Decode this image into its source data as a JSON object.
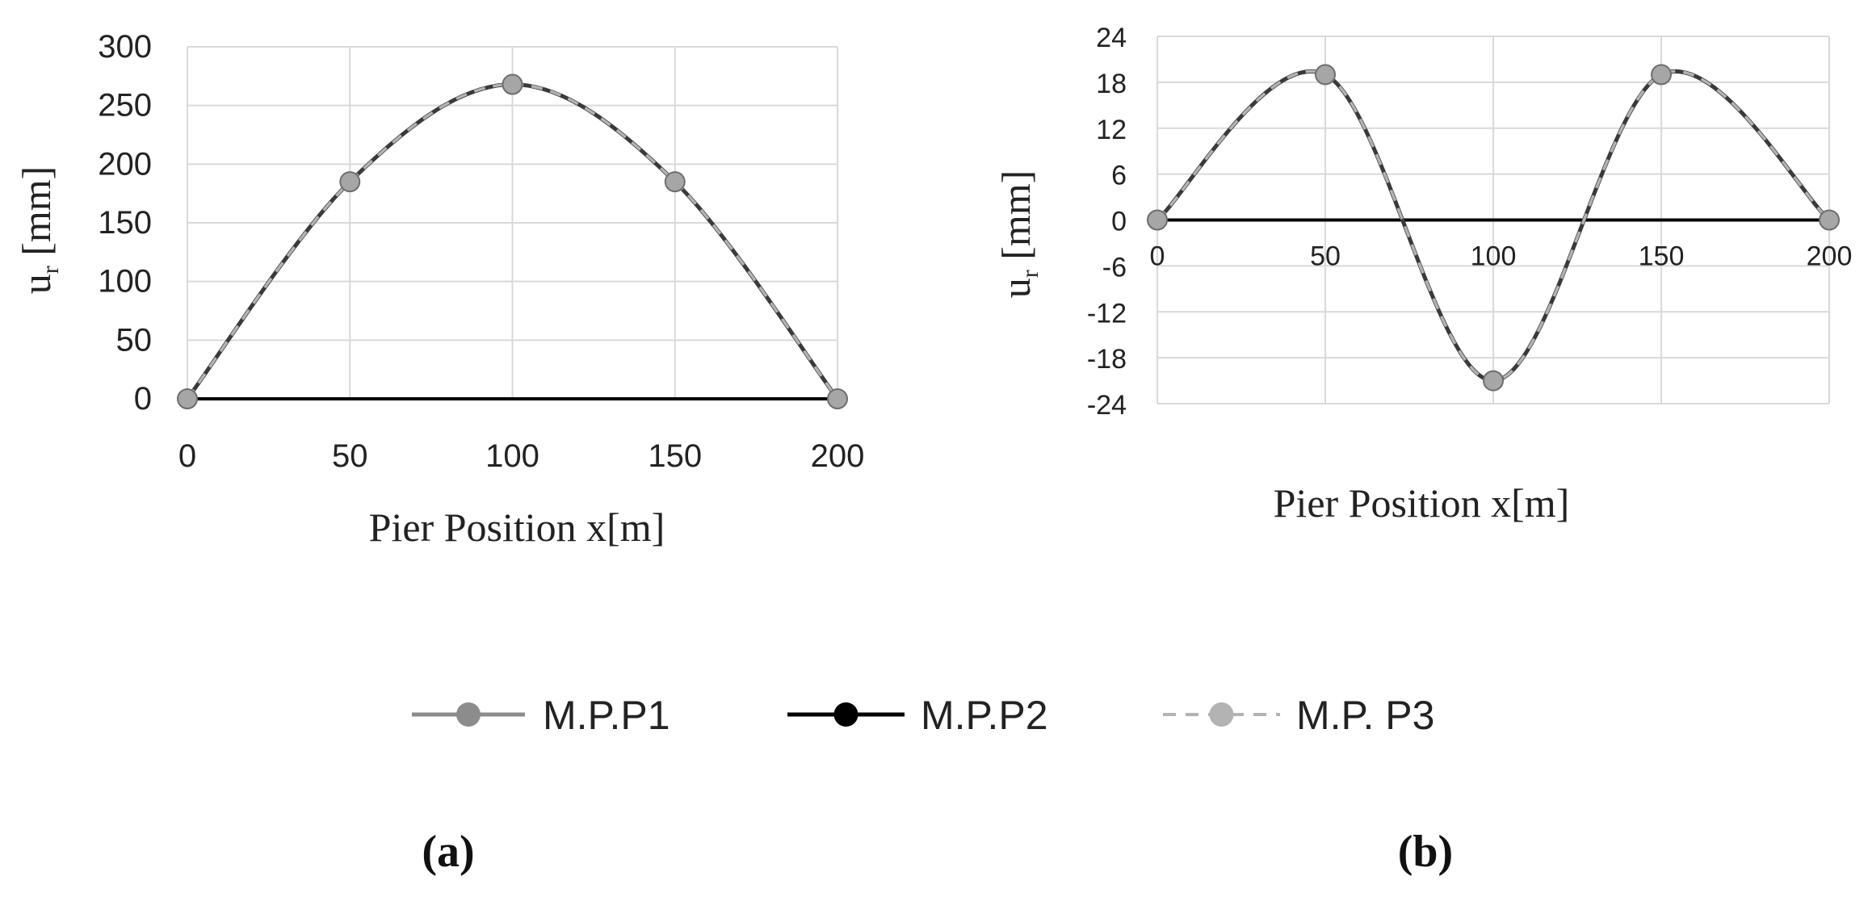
{
  "colors": {
    "grid": "#d9d9d9",
    "p1": "#8c8c8c",
    "p2": "#000000",
    "p3": "#b3b3b3",
    "marker": "#a6a6a6",
    "marker_stroke": "#6e6e6e"
  },
  "legend": [
    {
      "name": "M.P.P1",
      "style": "solid",
      "color": "#8c8c8c",
      "marker": "#8c8c8c"
    },
    {
      "name": "M.P.P2",
      "style": "solid",
      "color": "#000000",
      "marker": "#000000"
    },
    {
      "name": "M.P. P3",
      "style": "dashed",
      "color": "#b3b3b3",
      "marker": "#b3b3b3"
    }
  ],
  "chart_data": [
    {
      "panel": "(a)",
      "type": "line",
      "xlabel": "Pier Position x[m]",
      "ylabel_main": "u",
      "ylabel_sub": "r",
      "ylabel_unit": " [mm]",
      "xlim": [
        0,
        200
      ],
      "ylim": [
        0,
        300
      ],
      "xticks": [
        0,
        50,
        100,
        150,
        200
      ],
      "yticks": [
        0,
        50,
        100,
        150,
        200,
        250,
        300
      ],
      "x": [
        0,
        50,
        100,
        150,
        200
      ],
      "series": [
        {
          "name": "M.P.P1",
          "values": [
            0,
            185,
            268,
            185,
            0
          ]
        },
        {
          "name": "M.P.P2",
          "values": [
            0,
            0,
            0,
            0,
            0
          ]
        },
        {
          "name": "M.P. P3",
          "values": [
            0,
            185,
            268,
            185,
            0
          ]
        }
      ]
    },
    {
      "panel": "(b)",
      "type": "line",
      "xlabel": "Pier Position x[m]",
      "ylabel_main": "u",
      "ylabel_sub": "r",
      "ylabel_unit": " [mm]",
      "xlim": [
        0,
        200
      ],
      "ylim": [
        -24,
        24
      ],
      "xticks": [
        0,
        50,
        100,
        150,
        200
      ],
      "yticks": [
        24,
        18,
        12,
        6,
        0,
        -6,
        -12,
        -18,
        -24
      ],
      "x": [
        0,
        50,
        100,
        150,
        200
      ],
      "series": [
        {
          "name": "M.P.P1",
          "values": [
            0,
            19,
            -21,
            19,
            0
          ]
        },
        {
          "name": "M.P.P2",
          "values": [
            0,
            0,
            0,
            0,
            0
          ]
        },
        {
          "name": "M.P. P3",
          "values": [
            0,
            19,
            -21,
            19,
            0
          ]
        }
      ]
    }
  ]
}
